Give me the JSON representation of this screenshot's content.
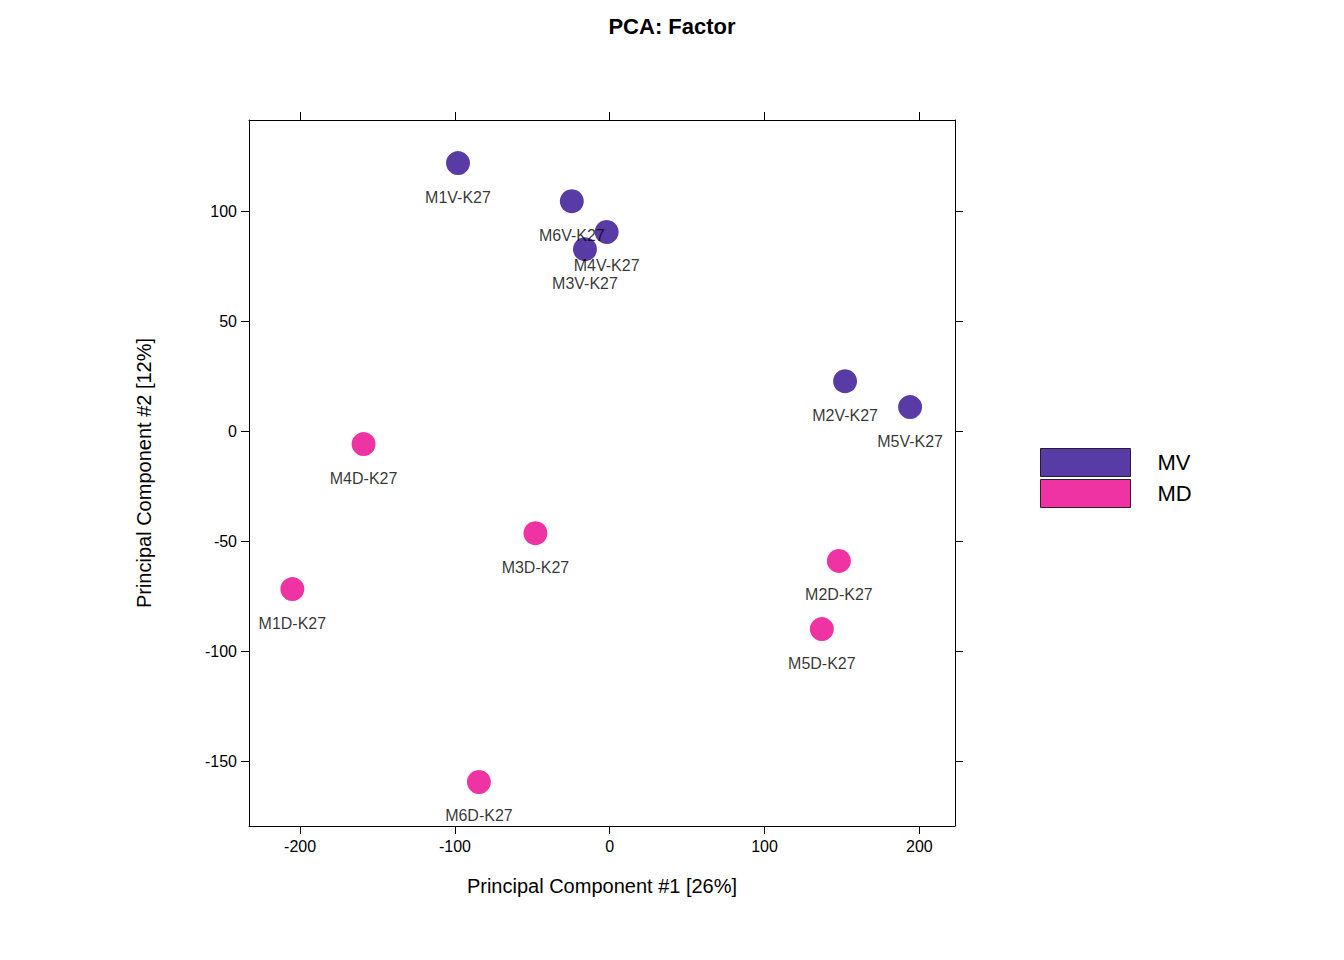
{
  "chart_data": {
    "type": "scatter",
    "title": "PCA: Factor",
    "x_label": "Principal Component #1 [26%]",
    "y_label": "Principal Component #2 [12%]",
    "xlim": [
      -233,
      223
    ],
    "ylim": [
      -179.5,
      141.4
    ],
    "xticks": [
      -200,
      -100,
      0,
      100,
      200
    ],
    "yticks": [
      -150,
      -100,
      -50,
      0,
      50,
      100
    ],
    "grid": false,
    "legend": "right",
    "marker": "circle",
    "series": [
      {
        "name": "MV",
        "color": "#2e0a8e",
        "labels": [
          "M1V-K27",
          "M6V-K27",
          "M4V-K27",
          "M3V-K27",
          "M2V-K27",
          "M5V-K27"
        ],
        "x": [
          -98,
          -24.5,
          -2,
          -16,
          152,
          194
        ],
        "y": [
          121.8,
          104.5,
          90.5,
          82.7,
          22.7,
          10.9
        ]
      },
      {
        "name": "MD",
        "color": "#ec008c",
        "labels": [
          "M4D-K27",
          "M3D-K27",
          "M1D-K27",
          "M2D-K27",
          "M5D-K27",
          "M6D-K27"
        ],
        "x": [
          -159,
          -48,
          -205,
          148,
          137,
          -84.5
        ],
        "y": [
          -5.9,
          -46.4,
          -71.8,
          -59,
          -90,
          -159.5
        ]
      }
    ]
  }
}
